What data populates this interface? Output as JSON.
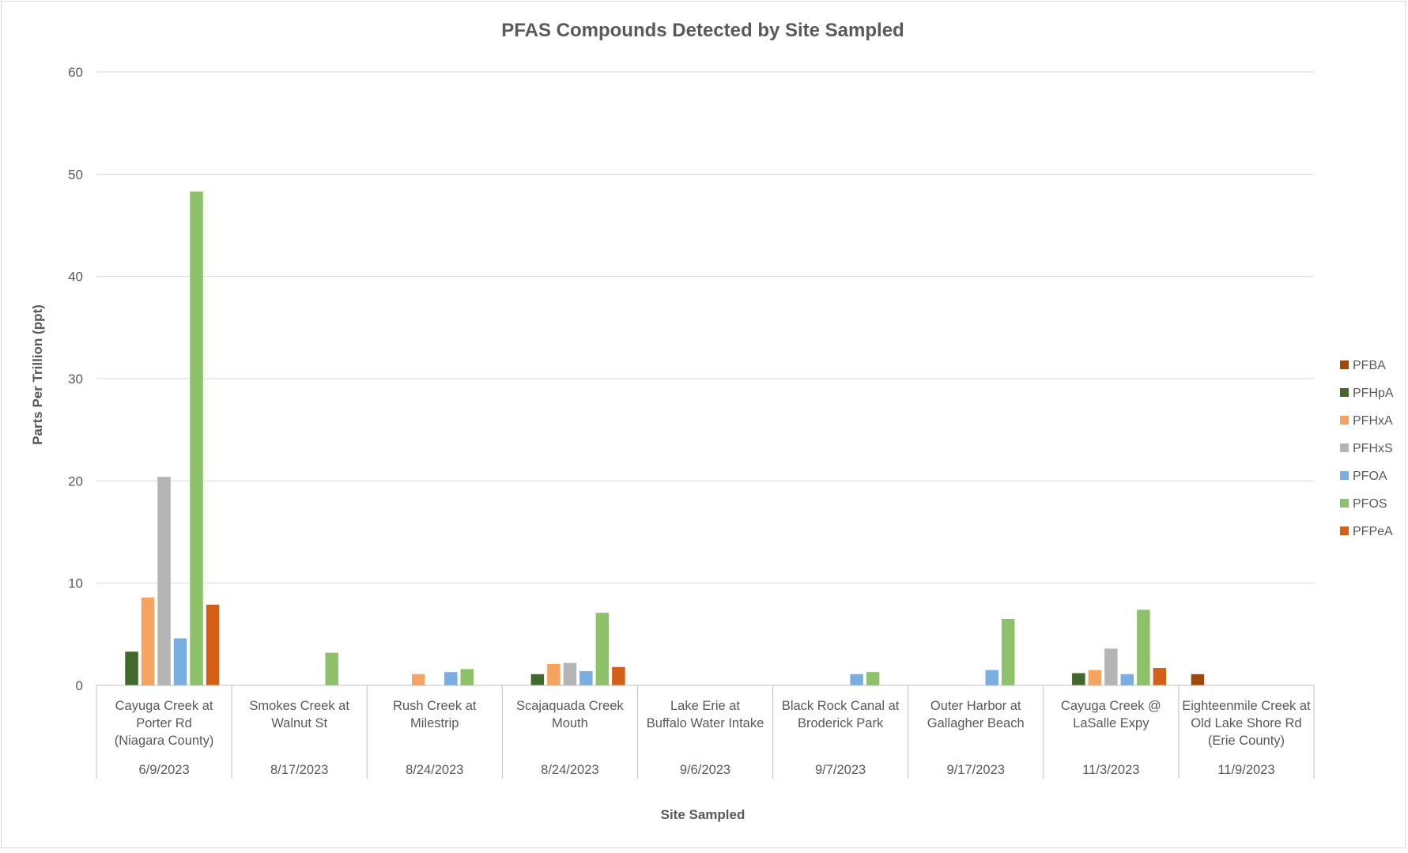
{
  "chart_data": {
    "type": "bar",
    "title": "PFAS Compounds Detected by Site Sampled",
    "xlabel": "Site Sampled",
    "ylabel": "Parts Per Trillion (ppt)",
    "ylim": [
      0,
      60
    ],
    "y_ticks": [
      0,
      10,
      20,
      30,
      40,
      50,
      60
    ],
    "grid": true,
    "legend_position": "right",
    "categories": [
      {
        "site": [
          "Cayuga Creek at",
          "Porter Rd",
          "(Niagara County)"
        ],
        "date": "6/9/2023"
      },
      {
        "site": [
          "Smokes Creek at",
          "Walnut St"
        ],
        "date": "8/17/2023"
      },
      {
        "site": [
          "Rush Creek at",
          "Milestrip"
        ],
        "date": "8/24/2023"
      },
      {
        "site": [
          "Scajaquada Creek",
          "Mouth"
        ],
        "date": "8/24/2023"
      },
      {
        "site": [
          "Lake Erie at",
          "Buffalo Water Intake"
        ],
        "date": "9/6/2023"
      },
      {
        "site": [
          "Black Rock Canal at",
          "Broderick Park"
        ],
        "date": "9/7/2023"
      },
      {
        "site": [
          "Outer Harbor at",
          "Gallagher Beach"
        ],
        "date": "9/17/2023"
      },
      {
        "site": [
          "Cayuga Creek @",
          "LaSalle Expy"
        ],
        "date": "11/3/2023"
      },
      {
        "site": [
          "Eighteenmile Creek at",
          "Old Lake Shore Rd",
          "(Erie County)"
        ],
        "date": "11/9/2023"
      }
    ],
    "series": [
      {
        "name": "PFBA",
        "color": "#9e480e",
        "values": [
          null,
          null,
          null,
          null,
          null,
          null,
          null,
          null,
          1.1
        ]
      },
      {
        "name": "PFHpA",
        "color": "#43682b",
        "values": [
          3.3,
          null,
          null,
          1.1,
          null,
          null,
          null,
          1.2,
          null
        ]
      },
      {
        "name": "PFHxA",
        "color": "#f4a460",
        "values": [
          8.6,
          null,
          1.1,
          2.1,
          null,
          null,
          null,
          1.5,
          null
        ]
      },
      {
        "name": "PFHxS",
        "color": "#b4b4b4",
        "values": [
          20.4,
          null,
          null,
          2.2,
          null,
          null,
          null,
          3.6,
          null
        ]
      },
      {
        "name": "PFOA",
        "color": "#7aaee0",
        "values": [
          4.6,
          null,
          1.3,
          1.4,
          null,
          1.1,
          1.5,
          1.1,
          null
        ]
      },
      {
        "name": "PFOS",
        "color": "#8dc16a",
        "values": [
          48.3,
          3.2,
          1.6,
          7.1,
          null,
          1.3,
          6.5,
          7.4,
          null
        ]
      },
      {
        "name": "PFPeA",
        "color": "#d36016",
        "values": [
          7.9,
          null,
          null,
          1.8,
          null,
          null,
          null,
          1.7,
          null
        ]
      }
    ]
  }
}
